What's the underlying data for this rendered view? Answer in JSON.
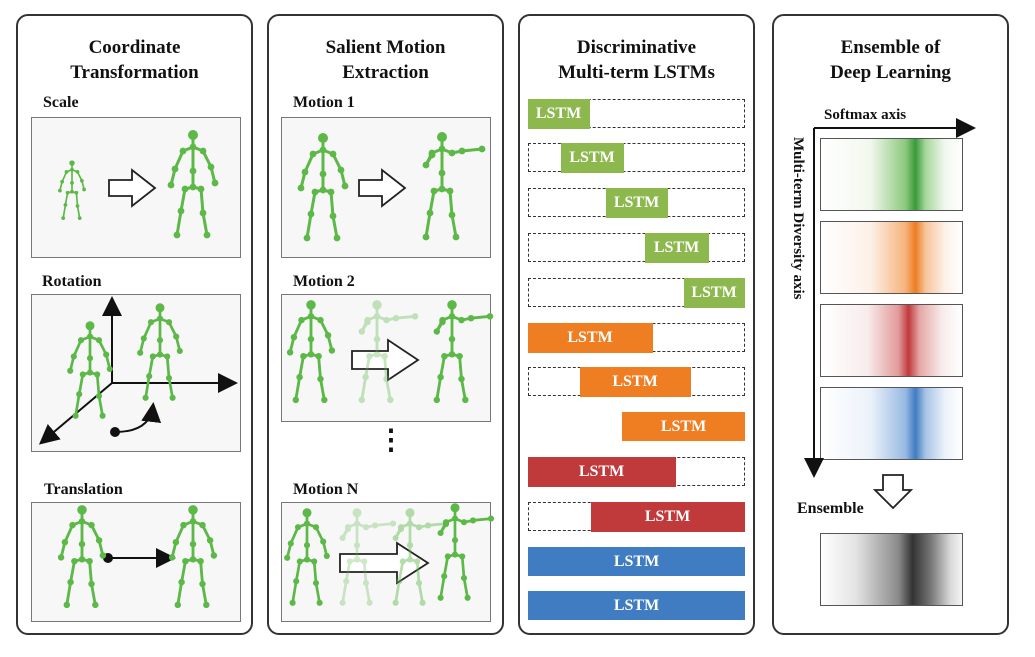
{
  "panels": {
    "coord": {
      "title_line1": "Coordinate",
      "title_line2": "Transformation",
      "scale_label": "Scale",
      "rotation_label": "Rotation",
      "translation_label": "Translation"
    },
    "salient": {
      "title_line1": "Salient Motion",
      "title_line2": "Extraction",
      "motion1_label": "Motion 1",
      "motion2_label": "Motion 2",
      "motionN_label": "Motion N",
      "ellipsis": "⋮"
    },
    "lstm": {
      "title_line1": "Discriminative",
      "title_line2": "Multi-term LSTMs",
      "block_label": "LSTM"
    },
    "ensemble": {
      "title_line1": "Ensemble of",
      "title_line2": "Deep Learning",
      "softmax_axis": "Softmax axis",
      "diversity_axis": "Multi-term Diversity axis",
      "ensemble_label": "Ensemble"
    }
  },
  "colors": {
    "skeleton": "#5cb847",
    "green": "#8db84e",
    "orange": "#ef7d22",
    "red": "#c0393b",
    "blue": "#3f7cc1",
    "gray": "#555555"
  },
  "lstm_rows": [
    {
      "color": "green",
      "dashed": true
    },
    {
      "color": "green",
      "dashed": true
    },
    {
      "color": "green",
      "dashed": true
    },
    {
      "color": "green",
      "dashed": true
    },
    {
      "color": "green",
      "dashed": true
    },
    {
      "color": "orange",
      "dashed": true
    },
    {
      "color": "orange",
      "dashed": true
    },
    {
      "color": "orange",
      "dashed": false
    },
    {
      "color": "red",
      "dashed": true
    },
    {
      "color": "red",
      "dashed": true
    },
    {
      "color": "blue",
      "dashed": false
    },
    {
      "color": "blue",
      "dashed": false
    }
  ]
}
